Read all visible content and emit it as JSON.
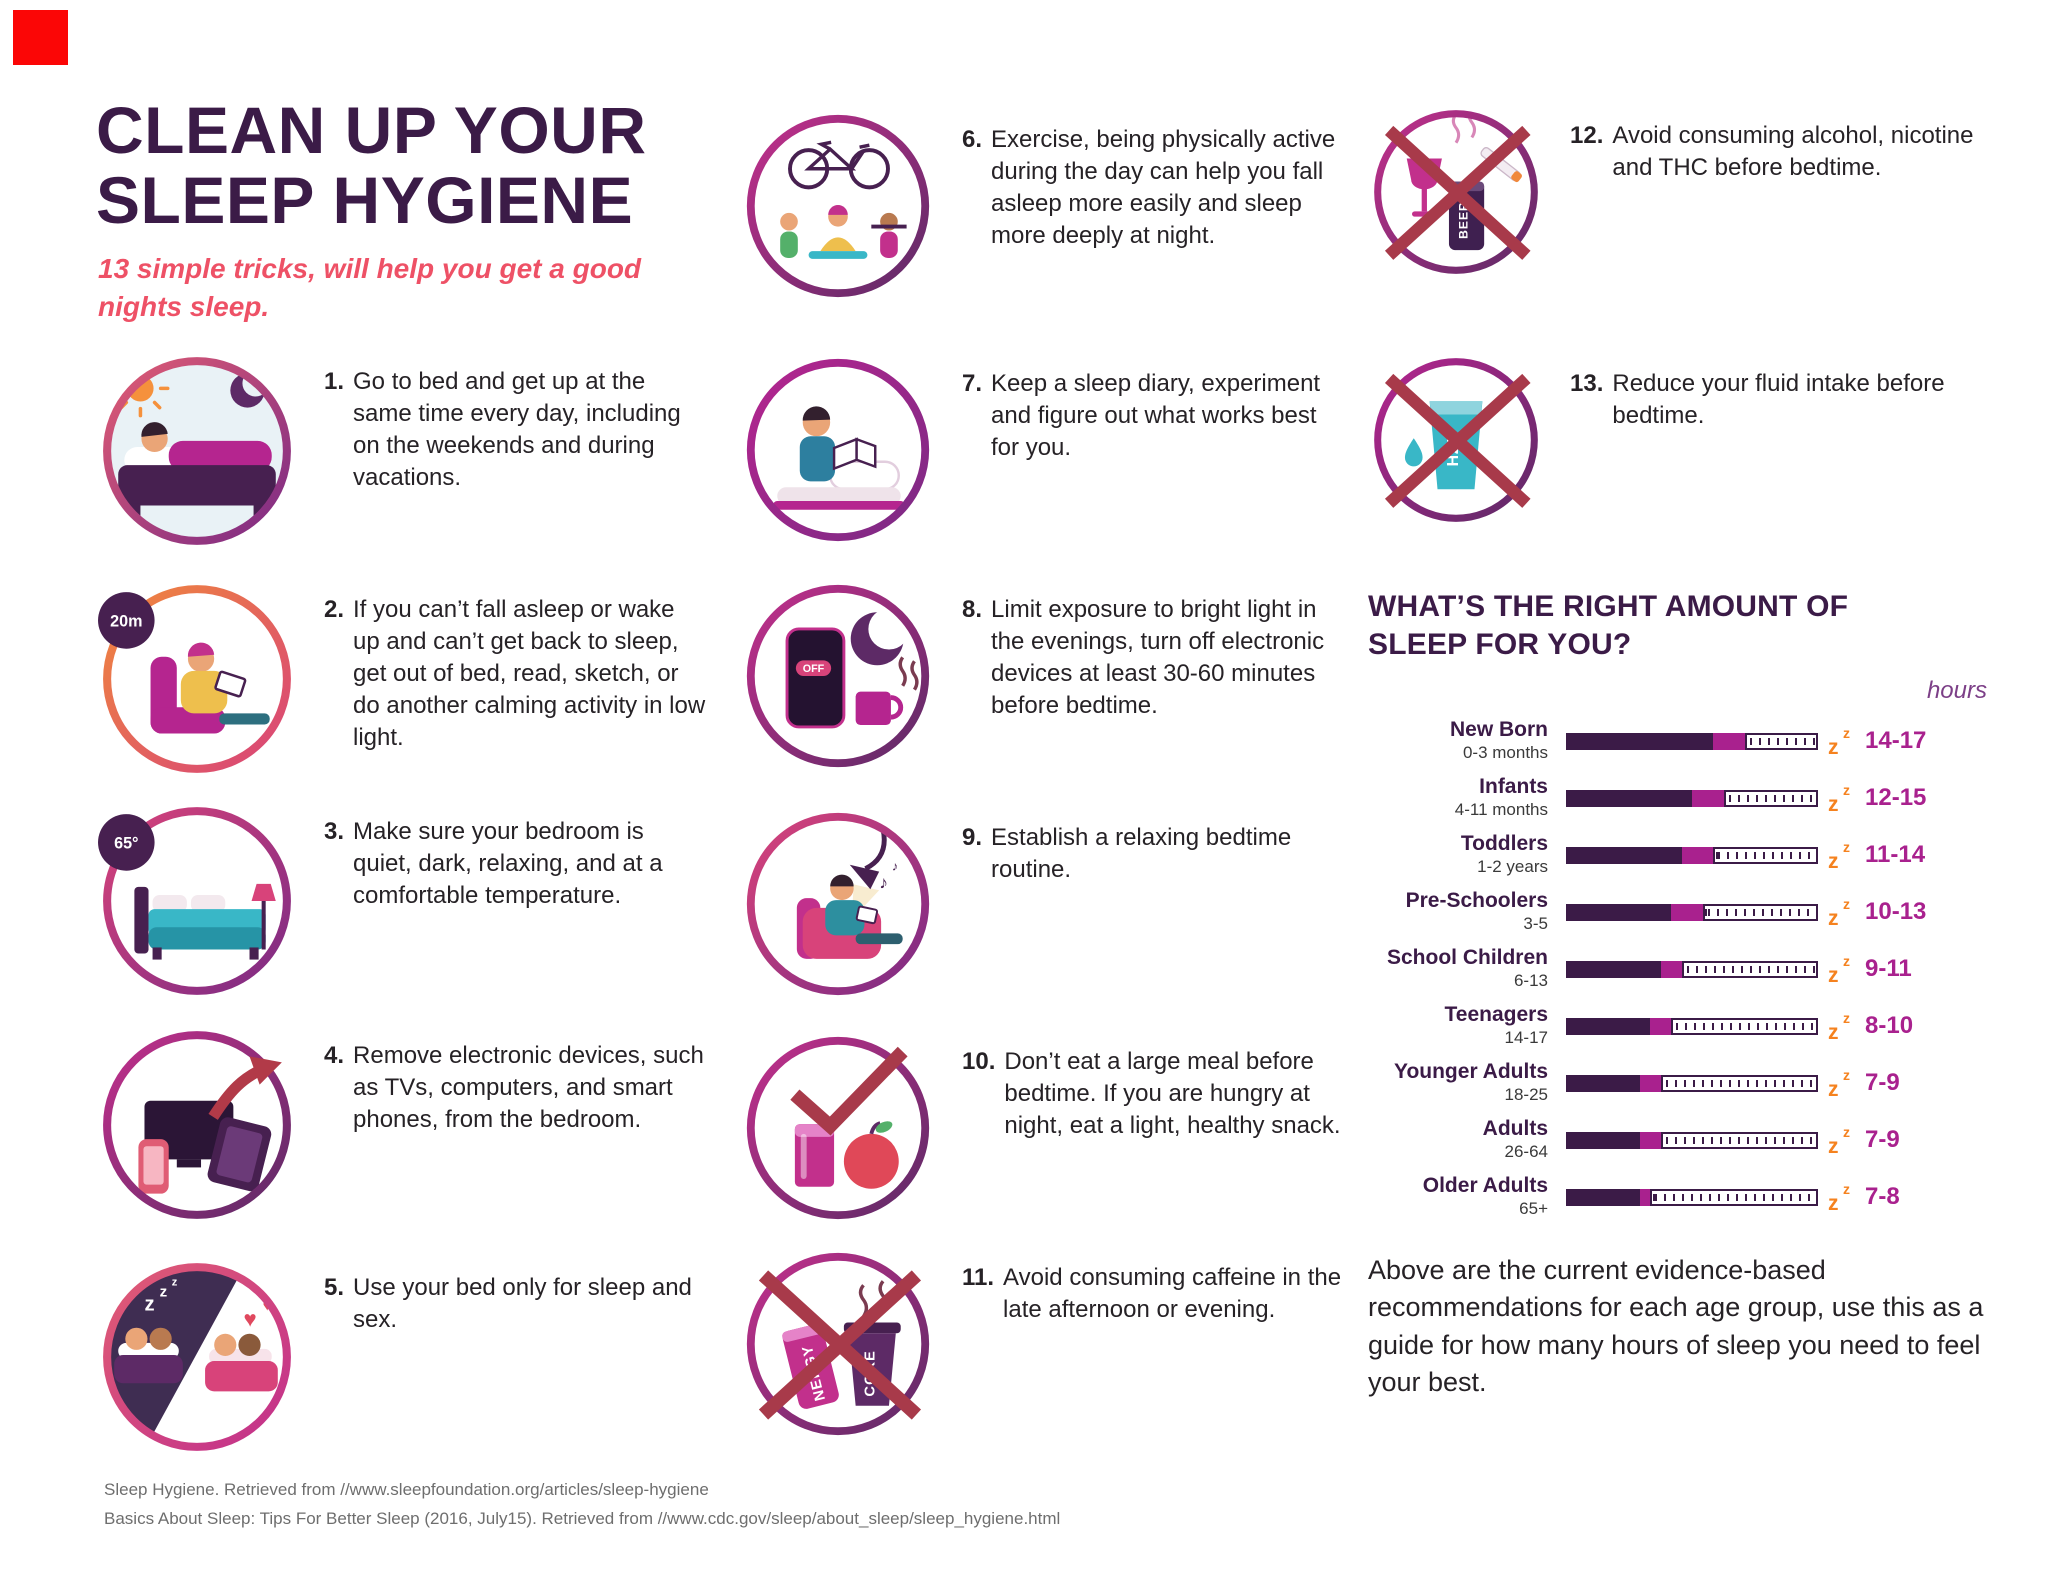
{
  "brand": {
    "color": "#fb0606"
  },
  "header": {
    "title_line1": "CLEAN UP YOUR",
    "title_line2": "SLEEP HYGIENE",
    "subtitle": "13 simple tricks, will help you get a good nights sleep."
  },
  "tips": [
    {
      "num": "1.",
      "icon": "schedule",
      "text": "Go to bed and get up at the same time every day, including on the weekends and during vacations."
    },
    {
      "num": "2.",
      "icon": "timer",
      "text": "If you can’t fall asleep or wake up and can’t get back to sleep, get out of bed, read, sketch, or do another calming activity in low light."
    },
    {
      "num": "3.",
      "icon": "temp",
      "text": "Make sure your bedroom is quiet, dark, relaxing, and at a comfortable temperature."
    },
    {
      "num": "4.",
      "icon": "devices",
      "text": "Remove electronic devices, such as TVs, computers, and smart phones, from the bedroom."
    },
    {
      "num": "5.",
      "icon": "bed",
      "text": "Use your bed only for sleep and sex."
    },
    {
      "num": "6.",
      "icon": "exercise",
      "text": "Exercise, being physically active during the day can help you fall asleep more easily and sleep more deeply at night."
    },
    {
      "num": "7.",
      "icon": "diary",
      "text": "Keep a sleep diary, experiment and figure out what works best for you."
    },
    {
      "num": "8.",
      "icon": "screens",
      "text": "Limit exposure to bright light in the evenings, turn off electronic devices at least 30-60 minutes before bedtime."
    },
    {
      "num": "9.",
      "icon": "routine",
      "text": "Establish a relaxing bedtime routine."
    },
    {
      "num": "10.",
      "icon": "snack",
      "text": "Don’t eat a large meal before bedtime. If you are hungry at night, eat a light, healthy snack."
    },
    {
      "num": "11.",
      "icon": "caffeine",
      "text": "Avoid consuming caffeine in the late afternoon or evening."
    },
    {
      "num": "12.",
      "icon": "alcohol",
      "text": "Avoid consuming alcohol, nicotine and THC before bedtime."
    },
    {
      "num": "13.",
      "icon": "water",
      "text": "Reduce your fluid intake before bedtime."
    }
  ],
  "icon_labels": {
    "z": "z",
    "timer_badge": "20m",
    "temp_badge": "65°",
    "off_label": "OFF",
    "energy_label": "NERGY",
    "cola_label": "COKE",
    "beer_label": "BEER",
    "water_label": "H20"
  },
  "chart_data": {
    "type": "bar",
    "heading": "WHAT’S THE RIGHT AMOUNT OF SLEEP FOR YOU?",
    "unit_label": "hours",
    "axis_total_hours": 24,
    "rows": [
      {
        "group": "New Born",
        "age": "0-3 months",
        "hours": "14-17",
        "min": 14,
        "max": 17
      },
      {
        "group": "Infants",
        "age": "4-11 months",
        "hours": "12-15",
        "min": 12,
        "max": 15
      },
      {
        "group": "Toddlers",
        "age": "1-2 years",
        "hours": "11-14",
        "min": 11,
        "max": 14
      },
      {
        "group": "Pre-Schoolers",
        "age": "3-5",
        "hours": "10-13",
        "min": 10,
        "max": 13
      },
      {
        "group": "School Children",
        "age": "6-13",
        "hours": "9-11",
        "min": 9,
        "max": 11
      },
      {
        "group": "Teenagers",
        "age": "14-17",
        "hours": "8-10",
        "min": 8,
        "max": 10
      },
      {
        "group": "Younger Adults",
        "age": "18-25",
        "hours": "7-9",
        "min": 7,
        "max": 9
      },
      {
        "group": "Adults",
        "age": "26-64",
        "hours": "7-9",
        "min": 7,
        "max": 9
      },
      {
        "group": "Older Adults",
        "age": "65+",
        "hours": "7-8",
        "min": 7,
        "max": 8
      }
    ],
    "note": "Above are the current evidence-based recommendations for each age group, use this as a guide for how many hours of sleep you need to feel your best."
  },
  "footer": {
    "line1": "Sleep Hygiene. Retrieved from //www.sleepfoundation.org/articles/sleep-hygiene",
    "line2": "Basics About Sleep: Tips For Better Sleep (2016, July15). Retrieved from //www.cdc.gov/sleep/about_sleep/sleep_hygiene.html"
  }
}
